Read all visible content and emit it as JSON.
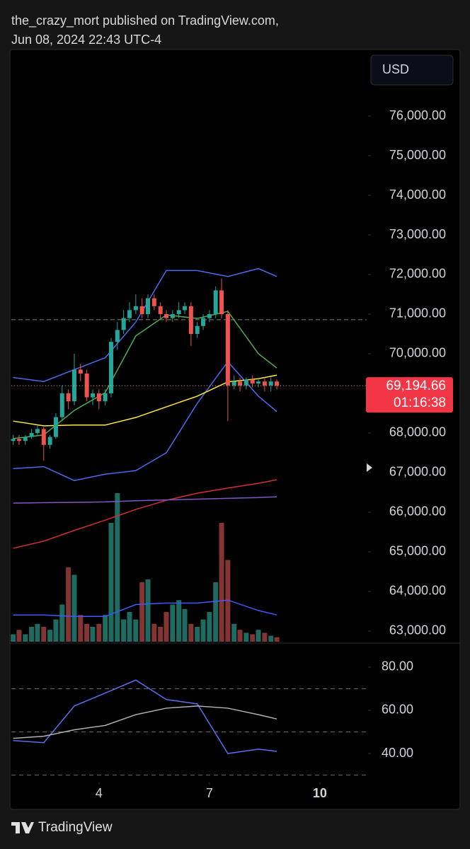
{
  "header": {
    "author_line": "the_crazy_mort published on TradingView.com,",
    "date_line": "Jun 08, 2024 22:43 UTC-4"
  },
  "footer": {
    "brand": "TradingView"
  },
  "chart_data": [
    {
      "type": "candlestick",
      "currency": "USD",
      "x": [
        1.67,
        1.83,
        2,
        2.17,
        2.33,
        2.5,
        2.67,
        2.83,
        3,
        3.17,
        3.33,
        3.5,
        3.67,
        3.83,
        4,
        4.17,
        4.33,
        4.5,
        4.67,
        4.83,
        5,
        5.17,
        5.33,
        5.5,
        5.67,
        5.83,
        6,
        6.17,
        6.33,
        6.5,
        6.67,
        6.83,
        7,
        7.17,
        7.33,
        7.5,
        7.67,
        7.83,
        8,
        8.17,
        8.33,
        8.5,
        8.67,
        8.83
      ],
      "open": [
        67800,
        67850,
        67800,
        67900,
        68000,
        68100,
        67700,
        67900,
        68400,
        69000,
        68800,
        69600,
        69500,
        68900,
        69000,
        68800,
        69000,
        70300,
        70600,
        70900,
        71100,
        71200,
        71000,
        71400,
        71200,
        71000,
        70900,
        71000,
        71100,
        71200,
        70500,
        70700,
        70900,
        71000,
        71600,
        71000,
        69200,
        69300,
        69200,
        69350,
        69250,
        69300,
        69200,
        69300
      ],
      "high": [
        67950,
        67950,
        67950,
        68100,
        68200,
        68150,
        67950,
        68500,
        69200,
        69100,
        70000,
        69750,
        69600,
        69100,
        69100,
        69100,
        70400,
        70800,
        71100,
        71300,
        71500,
        71400,
        71500,
        71500,
        71300,
        71100,
        71100,
        71300,
        71300,
        71300,
        70800,
        71000,
        71100,
        71700,
        71900,
        71100,
        69450,
        69400,
        69400,
        69450,
        69400,
        69400,
        69400,
        69350
      ],
      "low": [
        67700,
        67700,
        67700,
        67850,
        67950,
        67300,
        67600,
        67850,
        68300,
        68600,
        68700,
        69300,
        68800,
        68700,
        68600,
        68700,
        68900,
        70100,
        70500,
        70800,
        71000,
        70900,
        70900,
        71100,
        70900,
        70800,
        70800,
        70900,
        71000,
        70200,
        70400,
        70600,
        70800,
        70900,
        70900,
        68300,
        69100,
        69050,
        69100,
        69150,
        69150,
        69050,
        69050,
        69100
      ],
      "close": [
        67850,
        67800,
        67900,
        68000,
        68100,
        67700,
        67900,
        68400,
        69000,
        68800,
        69600,
        69500,
        68900,
        69000,
        68800,
        69000,
        70300,
        70600,
        70900,
        71100,
        71200,
        71000,
        71400,
        71200,
        71000,
        70900,
        71000,
        71100,
        71200,
        70500,
        70700,
        70900,
        71000,
        71600,
        71000,
        69200,
        69300,
        69200,
        69350,
        69250,
        69300,
        69200,
        69300,
        69194.66
      ],
      "up_color": "#26a69a",
      "down_color": "#ef5350",
      "xlim": [
        1.62,
        11.27
      ],
      "ylim": [
        62714,
        77643
      ],
      "yticks": [
        {
          "value": 76000,
          "label": "76,000.00"
        },
        {
          "value": 75000,
          "label": "75,000.00"
        },
        {
          "value": 74000,
          "label": "74,000.00"
        },
        {
          "value": 73000,
          "label": "73,000.00"
        },
        {
          "value": 72000,
          "label": "72,000.00"
        },
        {
          "value": 71000,
          "label": "71,000.00"
        },
        {
          "value": 70000,
          "label": "70,000.00"
        },
        {
          "value": 69000,
          "label": "69,000.00"
        },
        {
          "value": 68000,
          "label": "68,000.00"
        },
        {
          "value": 67000,
          "label": "67,000.00"
        },
        {
          "value": 66000,
          "label": "66,000.00"
        },
        {
          "value": 65000,
          "label": "65,000.00"
        },
        {
          "value": 64000,
          "label": "64,000.00"
        },
        {
          "value": 63000,
          "label": "63,000.00"
        }
      ],
      "hidden_ticks": [
        69000
      ],
      "last_price": {
        "value": 69194.66,
        "label": "69,194.66",
        "countdown": "01:16:38",
        "color": "#f23645"
      },
      "poc_level": 70860,
      "overlays_x": [
        1.67,
        2.5,
        3.33,
        4.17,
        5,
        5.83,
        6.67,
        7.5,
        8.33,
        8.83
      ],
      "overlays": [
        {
          "color": "#4c6bf0",
          "values": [
            69400,
            69300,
            69600,
            69900,
            70800,
            72100,
            72100,
            71950,
            72150,
            71950
          ]
        },
        {
          "color": "#4c6bf0",
          "values": [
            67100,
            67150,
            66800,
            66960,
            67050,
            67500,
            68750,
            69800,
            68930,
            68540
          ]
        },
        {
          "color": "#4caf50",
          "values": [
            67860,
            67950,
            68570,
            69020,
            70450,
            70980,
            70890,
            71070,
            70000,
            69640
          ]
        },
        {
          "color": "#ffeb3b",
          "values": [
            68300,
            68180,
            68200,
            68200,
            68390,
            68660,
            68930,
            69290,
            69370,
            69460
          ]
        },
        {
          "color": "#d32f2f",
          "values": [
            65090,
            65270,
            65540,
            65800,
            66070,
            66300,
            66480,
            66610,
            66730,
            66820
          ]
        },
        {
          "color": "#7e57c2",
          "values": [
            66230,
            66240,
            66250,
            66260,
            66290,
            66310,
            66330,
            66350,
            66370,
            66390
          ]
        }
      ],
      "volume": {
        "values": [
          5,
          8,
          5,
          10,
          12,
          10,
          8,
          15,
          25,
          50,
          45,
          18,
          12,
          10,
          12,
          18,
          80,
          100,
          15,
          20,
          15,
          40,
          42,
          12,
          10,
          20,
          25,
          28,
          22,
          12,
          10,
          15,
          20,
          40,
          80,
          55,
          12,
          8,
          6,
          5,
          8,
          6,
          4,
          3
        ],
        "vlim": [
          0,
          100
        ],
        "up_color": "#1f6b61",
        "down_color": "#853434",
        "ma": [
          18,
          18,
          17,
          17,
          25,
          26,
          26,
          28,
          21,
          18
        ],
        "ma_color": "#3d5afe"
      }
    },
    {
      "type": "line",
      "x": [
        1.67,
        2.5,
        3.33,
        4.17,
        5,
        5.83,
        6.67,
        7.5,
        8.33,
        8.83
      ],
      "series": [
        {
          "color": "#5a6ff0",
          "values": [
            46,
            45,
            62,
            68,
            74,
            65,
            63,
            40,
            42,
            41
          ]
        },
        {
          "color": "#b0b0b0",
          "values": [
            47,
            48,
            51,
            53,
            58,
            61,
            62,
            61,
            58,
            56
          ]
        }
      ],
      "xlim": [
        1.62,
        11.27
      ],
      "ylim": [
        26.9,
        90.8
      ],
      "yticks": [
        {
          "value": 80,
          "label": "80.00"
        },
        {
          "value": 60,
          "label": "60.00"
        },
        {
          "value": 40,
          "label": "40.00"
        }
      ],
      "xticks": [
        4,
        7,
        10
      ],
      "levels": [
        70,
        50,
        30
      ]
    }
  ]
}
